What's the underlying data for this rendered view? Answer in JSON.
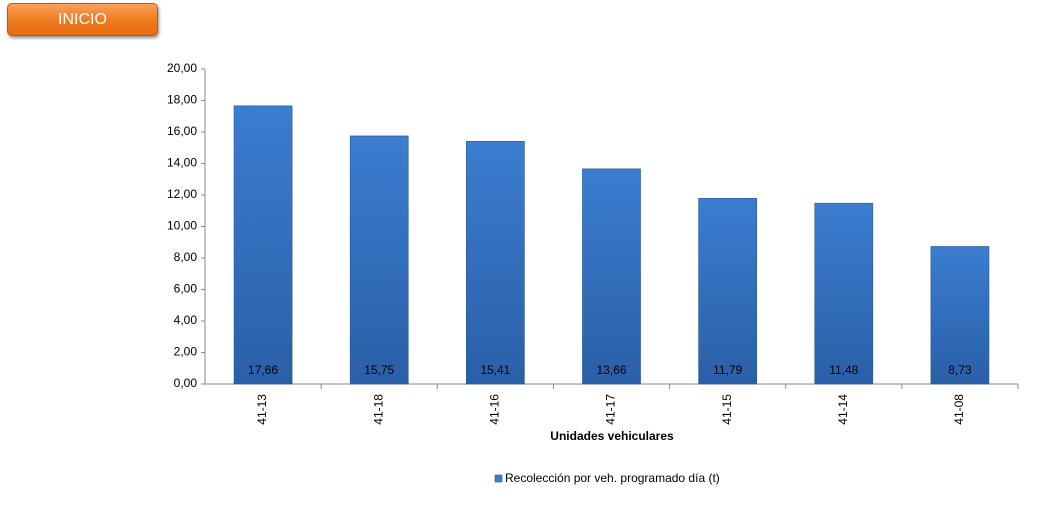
{
  "button": {
    "label": "INICIO"
  },
  "chart_data": {
    "type": "bar",
    "x_label": "Unidades vehiculares",
    "categories": [
      "41-13",
      "41-18",
      "41-16",
      "41-17",
      "41-15",
      "41-14",
      "41-08"
    ],
    "series": [
      {
        "name": "Recolección por veh. programado día (t)",
        "color": "#3b7dd0",
        "values": [
          17.66,
          15.75,
          15.41,
          13.66,
          11.79,
          11.48,
          8.73
        ],
        "value_labels": [
          "17,66",
          "15,75",
          "15,41",
          "13,66",
          "11,79",
          "11,48",
          "8,73"
        ]
      }
    ],
    "ylim": [
      0,
      20
    ],
    "yticks": [
      {
        "value": 0,
        "label": "0,00"
      },
      {
        "value": 2,
        "label": "2,00"
      },
      {
        "value": 4,
        "label": "4,00"
      },
      {
        "value": 6,
        "label": "6,00"
      },
      {
        "value": 8,
        "label": "8,00"
      },
      {
        "value": 10,
        "label": "10,00"
      },
      {
        "value": 12,
        "label": "12,00"
      },
      {
        "value": 14,
        "label": "14,00"
      },
      {
        "value": 16,
        "label": "16,00"
      },
      {
        "value": 18,
        "label": "18,00"
      },
      {
        "value": 20,
        "label": "20,00"
      }
    ],
    "grid": false,
    "legend": "bottom"
  }
}
